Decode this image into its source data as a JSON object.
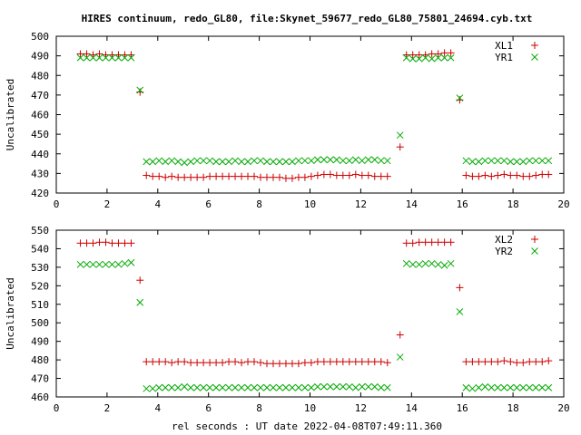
{
  "chart_data": [
    {
      "type": "scatter",
      "title": "HIRES continuum, redo_GL80, file:Skynet_59677_redo_GL80_75801_24694.cyb.txt",
      "xlabel": "",
      "ylabel": "Uncalibrated",
      "xlim": [
        0,
        20
      ],
      "ylim": [
        420,
        500
      ],
      "xticks": [
        0,
        2,
        4,
        6,
        8,
        10,
        12,
        14,
        16,
        18,
        20
      ],
      "yticks": [
        420,
        430,
        440,
        450,
        460,
        470,
        480,
        490,
        500
      ],
      "grid": false,
      "legend_position": "top-right",
      "series": [
        {
          "name": "XL1",
          "marker": "plus",
          "color": "#cc0000",
          "x": [
            0.95,
            1.2,
            1.45,
            1.7,
            1.95,
            2.2,
            2.45,
            2.7,
            2.95,
            3.3,
            3.55,
            3.8,
            4.05,
            4.3,
            4.55,
            4.8,
            5.05,
            5.3,
            5.55,
            5.8,
            6.05,
            6.3,
            6.55,
            6.8,
            7.05,
            7.3,
            7.55,
            7.8,
            8.05,
            8.3,
            8.55,
            8.8,
            9.05,
            9.3,
            9.55,
            9.8,
            10.05,
            10.3,
            10.55,
            10.8,
            11.05,
            11.3,
            11.55,
            11.8,
            12.05,
            12.3,
            12.55,
            12.8,
            13.05,
            13.55,
            13.8,
            14.05,
            14.3,
            14.55,
            14.8,
            15.05,
            15.3,
            15.55,
            15.9,
            16.15,
            16.4,
            16.65,
            16.9,
            17.15,
            17.4,
            17.65,
            17.9,
            18.15,
            18.4,
            18.65,
            18.9,
            19.15,
            19.4
          ],
          "y": [
            491,
            491,
            490.5,
            491,
            490.5,
            490.5,
            490.5,
            490.5,
            490.5,
            471.5,
            429,
            428.5,
            428.5,
            428,
            428.5,
            428,
            428,
            428,
            428,
            428,
            428.5,
            428.5,
            428.5,
            428.5,
            428.5,
            428.5,
            428.5,
            428.5,
            428,
            428,
            428,
            428,
            427.5,
            427.5,
            428,
            428,
            428.5,
            429,
            429.5,
            429.5,
            429,
            429,
            429,
            429.5,
            429,
            429,
            428.5,
            428.5,
            428.5,
            443.5,
            490.5,
            490.5,
            490.5,
            490.5,
            491,
            491,
            491.5,
            491.5,
            467.5,
            429,
            428.5,
            428.5,
            429,
            428.5,
            429,
            429.5,
            429,
            429,
            428.5,
            428.5,
            429,
            429.5,
            429.5
          ]
        },
        {
          "name": "YR1",
          "marker": "x",
          "color": "#00aa00",
          "x": [
            0.95,
            1.2,
            1.45,
            1.7,
            1.95,
            2.2,
            2.45,
            2.7,
            2.95,
            3.3,
            3.55,
            3.8,
            4.05,
            4.3,
            4.55,
            4.8,
            5.05,
            5.3,
            5.55,
            5.8,
            6.05,
            6.3,
            6.55,
            6.8,
            7.05,
            7.3,
            7.55,
            7.8,
            8.05,
            8.3,
            8.55,
            8.8,
            9.05,
            9.3,
            9.55,
            9.8,
            10.05,
            10.3,
            10.55,
            10.8,
            11.05,
            11.3,
            11.55,
            11.8,
            12.05,
            12.3,
            12.55,
            12.8,
            13.05,
            13.55,
            13.8,
            14.05,
            14.3,
            14.55,
            14.8,
            15.05,
            15.3,
            15.55,
            15.9,
            16.15,
            16.4,
            16.65,
            16.9,
            17.15,
            17.4,
            17.65,
            17.9,
            18.15,
            18.4,
            18.65,
            18.9,
            19.15,
            19.4
          ],
          "y": [
            489,
            489,
            489,
            489,
            489,
            489,
            489,
            489,
            489,
            472.5,
            436,
            436,
            436.5,
            436,
            436.5,
            436,
            435.5,
            436,
            436.5,
            436.5,
            436.5,
            436,
            436,
            436,
            436.5,
            436,
            436,
            436.5,
            436.5,
            436,
            436,
            436,
            436,
            436,
            436.5,
            436.5,
            436.5,
            437,
            437,
            437,
            437,
            436.5,
            436.5,
            437,
            436.5,
            437,
            437,
            436.5,
            436.5,
            449.5,
            489,
            488.5,
            488.5,
            489,
            488.5,
            489,
            489,
            489,
            468.5,
            436.5,
            436,
            436,
            436.5,
            436.5,
            436.5,
            436.5,
            436,
            436,
            436,
            436.5,
            436.5,
            436.5,
            436.5
          ]
        }
      ]
    },
    {
      "type": "scatter",
      "title": "",
      "xlabel": "rel seconds : UT date 2022-04-08T07:49:11.360",
      "ylabel": "Uncalibrated",
      "xlim": [
        0,
        20
      ],
      "ylim": [
        460,
        550
      ],
      "xticks": [
        0,
        2,
        4,
        6,
        8,
        10,
        12,
        14,
        16,
        18,
        20
      ],
      "yticks": [
        460,
        470,
        480,
        490,
        500,
        510,
        520,
        530,
        540,
        550
      ],
      "grid": false,
      "legend_position": "top-right",
      "series": [
        {
          "name": "XL2",
          "marker": "plus",
          "color": "#cc0000",
          "x": [
            0.95,
            1.2,
            1.45,
            1.7,
            1.95,
            2.2,
            2.45,
            2.7,
            2.95,
            3.3,
            3.55,
            3.8,
            4.05,
            4.3,
            4.55,
            4.8,
            5.05,
            5.3,
            5.55,
            5.8,
            6.05,
            6.3,
            6.55,
            6.8,
            7.05,
            7.3,
            7.55,
            7.8,
            8.05,
            8.3,
            8.55,
            8.8,
            9.05,
            9.3,
            9.55,
            9.8,
            10.05,
            10.3,
            10.55,
            10.8,
            11.05,
            11.3,
            11.55,
            11.8,
            12.05,
            12.3,
            12.55,
            12.8,
            13.05,
            13.55,
            13.8,
            14.05,
            14.3,
            14.55,
            14.8,
            15.05,
            15.3,
            15.55,
            15.9,
            16.15,
            16.4,
            16.65,
            16.9,
            17.15,
            17.4,
            17.65,
            17.9,
            18.15,
            18.4,
            18.65,
            18.9,
            19.15,
            19.4
          ],
          "y": [
            543,
            543,
            543,
            543.5,
            543.5,
            543,
            543,
            543,
            543,
            523,
            479,
            479,
            479,
            479,
            478.5,
            479,
            479,
            478.5,
            478.5,
            478.5,
            478.5,
            478.5,
            478.5,
            479,
            479,
            478.5,
            479,
            479,
            478.5,
            478,
            478,
            478,
            478,
            478,
            478,
            478.5,
            478.5,
            479,
            479,
            479,
            479,
            479,
            479,
            479,
            479,
            479,
            479,
            479,
            478.5,
            493.5,
            543,
            543,
            543.5,
            543.5,
            543.5,
            543.5,
            543.5,
            543.5,
            519,
            479,
            479,
            479,
            479,
            479,
            479,
            479.5,
            479,
            478.5,
            478.5,
            479,
            479,
            479,
            479.5
          ]
        },
        {
          "name": "YR2",
          "marker": "x",
          "color": "#00aa00",
          "x": [
            0.95,
            1.2,
            1.45,
            1.7,
            1.95,
            2.2,
            2.45,
            2.7,
            2.95,
            3.3,
            3.55,
            3.8,
            4.05,
            4.3,
            4.55,
            4.8,
            5.05,
            5.3,
            5.55,
            5.8,
            6.05,
            6.3,
            6.55,
            6.8,
            7.05,
            7.3,
            7.55,
            7.8,
            8.05,
            8.3,
            8.55,
            8.8,
            9.05,
            9.3,
            9.55,
            9.8,
            10.05,
            10.3,
            10.55,
            10.8,
            11.05,
            11.3,
            11.55,
            11.8,
            12.05,
            12.3,
            12.55,
            12.8,
            13.05,
            13.55,
            13.8,
            14.05,
            14.3,
            14.55,
            14.8,
            15.05,
            15.3,
            15.55,
            15.9,
            16.15,
            16.4,
            16.65,
            16.9,
            17.15,
            17.4,
            17.65,
            17.9,
            18.15,
            18.4,
            18.65,
            18.9,
            19.15,
            19.4
          ],
          "y": [
            531.5,
            531.5,
            531.5,
            531.5,
            531.5,
            531.5,
            531.5,
            532,
            532.5,
            511,
            464.5,
            464.5,
            465,
            465,
            465,
            465,
            465.5,
            465,
            465,
            465,
            465,
            465,
            465,
            465,
            465,
            465,
            465,
            465,
            465,
            465,
            465,
            465,
            465,
            465,
            465,
            465,
            465,
            465.5,
            465.5,
            465.5,
            465.5,
            465.5,
            465.5,
            465,
            465.5,
            465.5,
            465.5,
            465,
            465,
            481.5,
            532,
            531.5,
            531.5,
            532,
            532,
            531.5,
            531,
            532,
            506,
            465,
            464.5,
            465,
            465.5,
            465,
            465,
            465,
            465,
            465,
            465,
            465,
            465,
            465,
            465
          ]
        }
      ]
    }
  ]
}
